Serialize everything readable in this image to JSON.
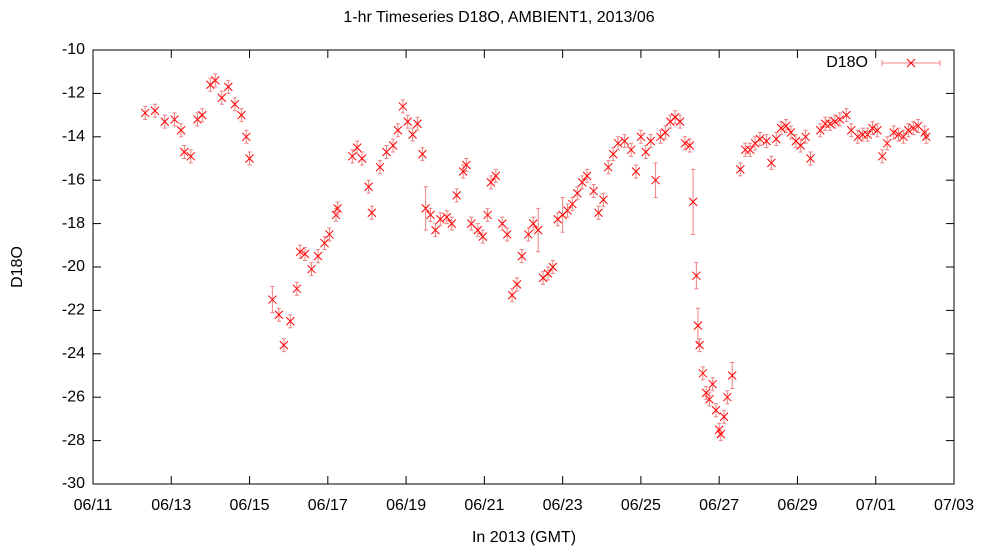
{
  "chart_data": {
    "type": "scatter",
    "title": "1-hr Timeseries D18O, AMBIENT1, 2013/06",
    "x_label": "In 2013 (GMT)",
    "y_label": "D18O",
    "xlim": [
      "2013-06-11T00:00Z",
      "2013-07-03T00:00Z"
    ],
    "xticks": [
      {
        "value": "2013-06-11T00:00Z",
        "label": "06/11"
      },
      {
        "value": "2013-06-13T00:00Z",
        "label": "06/13"
      },
      {
        "value": "2013-06-15T00:00Z",
        "label": "06/15"
      },
      {
        "value": "2013-06-17T00:00Z",
        "label": "06/17"
      },
      {
        "value": "2013-06-19T00:00Z",
        "label": "06/19"
      },
      {
        "value": "2013-06-21T00:00Z",
        "label": "06/21"
      },
      {
        "value": "2013-06-23T00:00Z",
        "label": "06/23"
      },
      {
        "value": "2013-06-25T00:00Z",
        "label": "06/25"
      },
      {
        "value": "2013-06-27T00:00Z",
        "label": "06/27"
      },
      {
        "value": "2013-06-29T00:00Z",
        "label": "06/29"
      },
      {
        "value": "2013-07-01T00:00Z",
        "label": "07/01"
      },
      {
        "value": "2013-07-03T00:00Z",
        "label": "07/03"
      }
    ],
    "ylim": [
      -30,
      -10
    ],
    "yticks": [
      -30,
      -28,
      -26,
      -24,
      -22,
      -20,
      -18,
      -16,
      -14,
      -12,
      -10
    ],
    "grid": false,
    "legend": "top-right",
    "series": [
      {
        "name": "D18O",
        "color": "#ff0000",
        "error_color": "#f08080",
        "x": [
          "2013-06-12T08:00Z",
          "2013-06-12T14:00Z",
          "2013-06-12T20:00Z",
          "2013-06-13T02:00Z",
          "2013-06-13T06:00Z",
          "2013-06-13T08:00Z",
          "2013-06-13T12:00Z",
          "2013-06-13T16:00Z",
          "2013-06-13T19:00Z",
          "2013-06-14T00:00Z",
          "2013-06-14T03:00Z",
          "2013-06-14T07:00Z",
          "2013-06-14T11:00Z",
          "2013-06-14T15:00Z",
          "2013-06-14T19:00Z",
          "2013-06-14T22:00Z",
          "2013-06-15T00:00Z",
          "2013-06-15T14:00Z",
          "2013-06-15T18:00Z",
          "2013-06-15T21:00Z",
          "2013-06-16T01:00Z",
          "2013-06-16T05:00Z",
          "2013-06-16T07:00Z",
          "2013-06-16T10:00Z",
          "2013-06-16T14:00Z",
          "2013-06-16T18:00Z",
          "2013-06-16T22:00Z",
          "2013-06-17T01:00Z",
          "2013-06-17T05:00Z",
          "2013-06-17T06:00Z",
          "2013-06-17T15:00Z",
          "2013-06-17T18:00Z",
          "2013-06-17T21:00Z",
          "2013-06-18T01:00Z",
          "2013-06-18T03:00Z",
          "2013-06-18T08:00Z",
          "2013-06-18T12:00Z",
          "2013-06-18T16:00Z",
          "2013-06-18T19:00Z",
          "2013-06-18T22:00Z",
          "2013-06-19T01:00Z",
          "2013-06-19T04:00Z",
          "2013-06-19T07:00Z",
          "2013-06-19T10:00Z",
          "2013-06-19T12:00Z",
          "2013-06-19T15:00Z",
          "2013-06-19T18:00Z",
          "2013-06-19T21:00Z",
          "2013-06-20T01:00Z",
          "2013-06-20T04:00Z",
          "2013-06-20T07:00Z",
          "2013-06-20T11:00Z",
          "2013-06-20T13:00Z",
          "2013-06-20T16:00Z",
          "2013-06-20T20:00Z",
          "2013-06-20T23:00Z",
          "2013-06-21T02:00Z",
          "2013-06-21T04:00Z",
          "2013-06-21T07:00Z",
          "2013-06-21T11:00Z",
          "2013-06-21T14:00Z",
          "2013-06-21T17:00Z",
          "2013-06-21T20:00Z",
          "2013-06-21T23:00Z",
          "2013-06-22T03:00Z",
          "2013-06-22T06:00Z",
          "2013-06-22T09:00Z",
          "2013-06-22T12:00Z",
          "2013-06-22T15:00Z",
          "2013-06-22T18:00Z",
          "2013-06-22T21:00Z",
          "2013-06-23T00:00Z",
          "2013-06-23T03:00Z",
          "2013-06-23T06:00Z",
          "2013-06-23T09:00Z",
          "2013-06-23T12:00Z",
          "2013-06-23T15:00Z",
          "2013-06-23T19:00Z",
          "2013-06-23T22:00Z",
          "2013-06-24T01:00Z",
          "2013-06-24T04:00Z",
          "2013-06-24T07:00Z",
          "2013-06-24T10:00Z",
          "2013-06-24T14:00Z",
          "2013-06-24T18:00Z",
          "2013-06-24T21:00Z",
          "2013-06-25T00:00Z",
          "2013-06-25T03:00Z",
          "2013-06-25T06:00Z",
          "2013-06-25T09:00Z",
          "2013-06-25T12:00Z",
          "2013-06-25T15:00Z",
          "2013-06-25T18:00Z",
          "2013-06-25T21:00Z",
          "2013-06-26T00:00Z",
          "2013-06-26T03:00Z",
          "2013-06-26T06:00Z",
          "2013-06-26T08:00Z",
          "2013-06-26T10:00Z",
          "2013-06-26T11:00Z",
          "2013-06-26T12:00Z",
          "2013-06-26T14:00Z",
          "2013-06-26T16:00Z",
          "2013-06-26T18:00Z",
          "2013-06-26T20:00Z",
          "2013-06-26T22:00Z",
          "2013-06-27T00:00Z",
          "2013-06-27T01:00Z",
          "2013-06-27T03:00Z",
          "2013-06-27T05:00Z",
          "2013-06-27T08:00Z",
          "2013-06-27T13:00Z",
          "2013-06-27T16:00Z",
          "2013-06-27T19:00Z",
          "2013-06-27T22:00Z",
          "2013-06-28T01:00Z",
          "2013-06-28T05:00Z",
          "2013-06-28T08:00Z",
          "2013-06-28T11:00Z",
          "2013-06-28T14:00Z",
          "2013-06-28T17:00Z",
          "2013-06-28T20:00Z",
          "2013-06-28T23:00Z",
          "2013-06-29T02:00Z",
          "2013-06-29T05:00Z",
          "2013-06-29T08:00Z",
          "2013-06-29T14:00Z",
          "2013-06-29T17:00Z",
          "2013-06-29T20:00Z",
          "2013-06-29T23:00Z",
          "2013-06-30T02:00Z",
          "2013-06-30T06:00Z",
          "2013-06-30T09:00Z",
          "2013-06-30T13:00Z",
          "2013-06-30T16:00Z",
          "2013-06-30T19:00Z",
          "2013-06-30T22:00Z",
          "2013-07-01T01:00Z",
          "2013-07-01T04:00Z",
          "2013-07-01T07:00Z",
          "2013-07-01T11:00Z",
          "2013-07-01T14:00Z",
          "2013-07-01T17:00Z",
          "2013-07-01T20:00Z",
          "2013-07-01T23:00Z",
          "2013-07-02T02:00Z",
          "2013-07-02T06:00Z",
          "2013-07-02T07:00Z"
        ],
        "values": [
          -12.9,
          -12.8,
          -13.3,
          -13.2,
          -13.7,
          -14.7,
          -14.9,
          -13.2,
          -13.0,
          -11.6,
          -11.4,
          -12.2,
          -11.7,
          -12.5,
          -13.0,
          -14.0,
          -15.0,
          -21.5,
          -22.2,
          -23.6,
          -22.5,
          -21.0,
          -19.3,
          -19.4,
          -20.1,
          -19.5,
          -18.9,
          -18.5,
          -17.6,
          -17.3,
          -14.9,
          -14.5,
          -15.0,
          -16.3,
          -17.5,
          -15.4,
          -14.7,
          -14.4,
          -13.7,
          -12.6,
          -13.3,
          -13.9,
          -13.4,
          -14.8,
          -17.3,
          -17.6,
          -18.3,
          -17.8,
          -17.7,
          -18.0,
          -16.7,
          -15.6,
          -15.3,
          -18.0,
          -18.3,
          -18.6,
          -17.6,
          -16.1,
          -15.8,
          -18.0,
          -18.5,
          -21.3,
          -20.8,
          -19.5,
          -18.5,
          -18.0,
          -18.3,
          -20.5,
          -20.3,
          -20.0,
          -17.8,
          -17.6,
          -17.4,
          -17.1,
          -16.6,
          -16.1,
          -15.8,
          -16.5,
          -17.5,
          -16.9,
          -15.4,
          -14.8,
          -14.3,
          -14.2,
          -14.6,
          -15.6,
          -14.0,
          -14.7,
          -14.2,
          -16.0,
          -14.0,
          -13.8,
          -13.3,
          -13.1,
          -13.3,
          -14.3,
          -14.4,
          -17.0,
          -20.4,
          -22.7,
          -23.6,
          -24.9,
          -25.8,
          -26.1,
          -25.4,
          -26.6,
          -27.5,
          -27.7,
          -26.9,
          -26.0,
          -25.0,
          -15.5,
          -14.6,
          -14.6,
          -14.3,
          -14.1,
          -14.2,
          -15.2,
          -14.1,
          -13.6,
          -13.5,
          -13.8,
          -14.2,
          -14.4,
          -14.0,
          -15.0,
          -13.7,
          -13.4,
          -13.4,
          -13.3,
          -13.2,
          -13.0,
          -13.7,
          -14.0,
          -13.9,
          -13.9,
          -13.6,
          -13.7,
          -14.9,
          -14.3,
          -13.8,
          -13.9,
          -14.0,
          -13.7,
          -13.6,
          -13.5,
          -13.8,
          -14.0
        ],
        "errors": [
          0.3,
          0.3,
          0.3,
          0.3,
          0.3,
          0.3,
          0.3,
          0.3,
          0.3,
          0.3,
          0.3,
          0.3,
          0.3,
          0.3,
          0.3,
          0.3,
          0.3,
          0.6,
          0.3,
          0.3,
          0.3,
          0.3,
          0.3,
          0.3,
          0.3,
          0.3,
          0.3,
          0.3,
          0.3,
          0.3,
          0.3,
          0.3,
          0.3,
          0.3,
          0.3,
          0.3,
          0.3,
          0.3,
          0.3,
          0.3,
          0.3,
          0.3,
          0.3,
          0.3,
          1.0,
          0.3,
          0.3,
          0.3,
          0.3,
          0.3,
          0.3,
          0.3,
          0.3,
          0.3,
          0.3,
          0.3,
          0.3,
          0.3,
          0.3,
          0.3,
          0.3,
          0.3,
          0.3,
          0.3,
          0.3,
          0.3,
          1.0,
          0.3,
          0.3,
          0.3,
          0.3,
          0.8,
          0.3,
          0.3,
          0.3,
          0.3,
          0.3,
          0.3,
          0.3,
          0.3,
          0.3,
          0.3,
          0.3,
          0.3,
          0.3,
          0.3,
          0.3,
          0.3,
          0.3,
          0.8,
          0.3,
          0.3,
          0.3,
          0.3,
          0.3,
          0.3,
          0.3,
          1.5,
          0.6,
          0.8,
          0.3,
          0.3,
          0.3,
          0.3,
          0.3,
          0.3,
          0.3,
          0.3,
          0.3,
          0.3,
          0.6,
          0.3,
          0.3,
          0.3,
          0.3,
          0.3,
          0.3,
          0.3,
          0.3,
          0.3,
          0.3,
          0.3,
          0.3,
          0.3,
          0.3,
          0.3,
          0.3,
          0.3,
          0.3,
          0.3,
          0.3,
          0.3,
          0.3,
          0.3,
          0.3,
          0.3,
          0.3,
          0.3,
          0.3,
          0.3,
          0.3,
          0.3,
          0.3,
          0.3,
          0.3,
          0.3,
          0.3,
          0.3
        ]
      }
    ]
  }
}
